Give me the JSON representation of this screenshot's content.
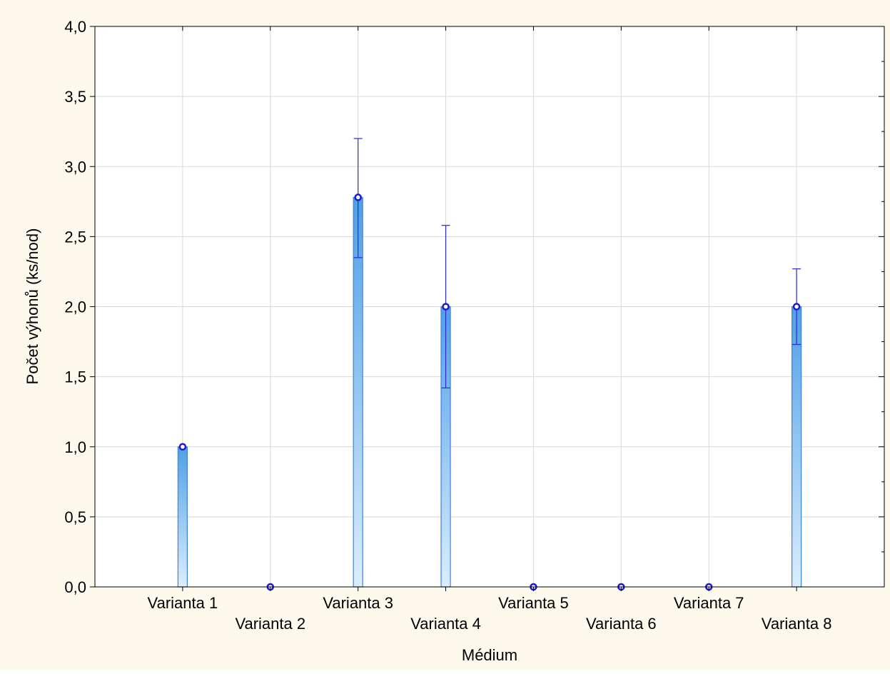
{
  "chart_data": {
    "type": "bar",
    "title": "",
    "xlabel": "Médium",
    "ylabel": "Počet výhonů (ks/nod)",
    "categories": [
      "Varianta 1",
      "Varianta 2",
      "Varianta 3",
      "Varianta 4",
      "Varianta 5",
      "Varianta 6",
      "Varianta 7",
      "Varianta 8"
    ],
    "values": [
      1.0,
      0.0,
      2.78,
      2.0,
      0.0,
      0.0,
      0.0,
      2.0
    ],
    "error_upper": [
      1.0,
      0.0,
      3.2,
      2.58,
      0.0,
      0.0,
      0.0,
      2.27
    ],
    "error_lower": [
      1.0,
      0.0,
      2.35,
      1.42,
      0.0,
      0.0,
      0.0,
      1.73
    ],
    "ylim": [
      0,
      4.0
    ],
    "yticks": [
      "0,0",
      "0,5",
      "1,0",
      "1,5",
      "2,0",
      "2,5",
      "3,0",
      "3,5",
      "4,0"
    ],
    "ytick_values": [
      0,
      0.5,
      1.0,
      1.5,
      2.0,
      2.5,
      3.0,
      3.5,
      4.0
    ],
    "grid": true,
    "colors": {
      "page_background": "#fdf9ec",
      "plot_background": "#ffffff",
      "bar_light": "#dbeeff",
      "bar_dark": "#4f9fe6",
      "bar_border": "#3f83d8",
      "error_bar": "#2b2bd0",
      "marker": "#1a1ad0",
      "grid": "#d9d9d9",
      "axis": "#000000"
    }
  }
}
